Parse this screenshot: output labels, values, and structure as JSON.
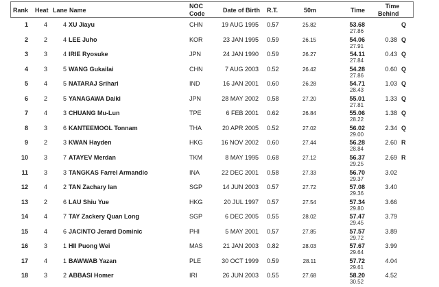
{
  "headers": {
    "rank": "Rank",
    "heat": "Heat",
    "lane": "Lane",
    "name": "Name",
    "noc": "NOC\nCode",
    "noc1": "NOC",
    "noc2": "Code",
    "dob": "Date of Birth",
    "rt": "R.T.",
    "m50": "50m",
    "time": "Time",
    "behind1": "Time",
    "behind2": "Behind"
  },
  "rows": [
    {
      "rank": "1",
      "heat": "4",
      "lane": "4",
      "name": "XU Jiayu",
      "noc": "CHN",
      "dob": "19 AUG 1995",
      "rt": "0.57",
      "m50": "25.82",
      "time": "53.68",
      "split": "27.86",
      "behind": "",
      "q": "Q"
    },
    {
      "rank": "2",
      "heat": "2",
      "lane": "4",
      "name": "LEE Juho",
      "noc": "KOR",
      "dob": "23 JAN 1995",
      "rt": "0.59",
      "m50": "26.15",
      "time": "54.06",
      "split": "27.91",
      "behind": "0.38",
      "q": "Q"
    },
    {
      "rank": "3",
      "heat": "3",
      "lane": "4",
      "name": "IRIE Ryosuke",
      "noc": "JPN",
      "dob": "24 JAN 1990",
      "rt": "0.59",
      "m50": "26.27",
      "time": "54.11",
      "split": "27.84",
      "behind": "0.43",
      "q": "Q"
    },
    {
      "rank": "4",
      "heat": "3",
      "lane": "5",
      "name": "WANG Gukailai",
      "noc": "CHN",
      "dob": "7 AUG 2003",
      "rt": "0.52",
      "m50": "26.42",
      "time": "54.28",
      "split": "27.86",
      "behind": "0.60",
      "q": "Q"
    },
    {
      "rank": "5",
      "heat": "4",
      "lane": "5",
      "name": "NATARAJ Srihari",
      "noc": "IND",
      "dob": "16 JAN 2001",
      "rt": "0.60",
      "m50": "26.28",
      "time": "54.71",
      "split": "28.43",
      "behind": "1.03",
      "q": "Q"
    },
    {
      "rank": "6",
      "heat": "2",
      "lane": "5",
      "name": "YANAGAWA Daiki",
      "noc": "JPN",
      "dob": "28 MAY 2002",
      "rt": "0.58",
      "m50": "27.20",
      "time": "55.01",
      "split": "27.81",
      "behind": "1.33",
      "q": "Q"
    },
    {
      "rank": "7",
      "heat": "4",
      "lane": "3",
      "name": "CHUANG Mu-Lun",
      "noc": "TPE",
      "dob": "6 FEB 2001",
      "rt": "0.62",
      "m50": "26.84",
      "time": "55.06",
      "split": "28.22",
      "behind": "1.38",
      "q": "Q"
    },
    {
      "rank": "8",
      "heat": "3",
      "lane": "6",
      "name": "KANTEEMOOL Tonnam",
      "noc": "THA",
      "dob": "20 APR 2005",
      "rt": "0.52",
      "m50": "27.02",
      "time": "56.02",
      "split": "29.00",
      "behind": "2.34",
      "q": "Q"
    },
    {
      "rank": "9",
      "heat": "2",
      "lane": "3",
      "name": "KWAN Hayden",
      "noc": "HKG",
      "dob": "16 NOV 2002",
      "rt": "0.60",
      "m50": "27.44",
      "time": "56.28",
      "split": "28.84",
      "behind": "2.60",
      "q": "R"
    },
    {
      "rank": "10",
      "heat": "3",
      "lane": "7",
      "name": "ATAYEV Merdan",
      "noc": "TKM",
      "dob": "8 MAY 1995",
      "rt": "0.68",
      "m50": "27.12",
      "time": "56.37",
      "split": "29.25",
      "behind": "2.69",
      "q": "R"
    },
    {
      "rank": "11",
      "heat": "3",
      "lane": "3",
      "name": "TANGKAS Farrel Armandio",
      "noc": "INA",
      "dob": "22 DEC 2001",
      "rt": "0.58",
      "m50": "27.33",
      "time": "56.70",
      "split": "29.37",
      "behind": "3.02",
      "q": ""
    },
    {
      "rank": "12",
      "heat": "4",
      "lane": "2",
      "name": "TAN Zachary Ian",
      "noc": "SGP",
      "dob": "14 JUN 2003",
      "rt": "0.57",
      "m50": "27.72",
      "time": "57.08",
      "split": "29.36",
      "behind": "3.40",
      "q": ""
    },
    {
      "rank": "13",
      "heat": "2",
      "lane": "6",
      "name": "LAU Shiu Yue",
      "noc": "HKG",
      "dob": "20 JUL 1997",
      "rt": "0.57",
      "m50": "27.54",
      "time": "57.34",
      "split": "29.80",
      "behind": "3.66",
      "q": ""
    },
    {
      "rank": "14",
      "heat": "4",
      "lane": "7",
      "name": "TAY Zackery Quan Long",
      "noc": "SGP",
      "dob": "6 DEC 2005",
      "rt": "0.55",
      "m50": "28.02",
      "time": "57.47",
      "split": "29.45",
      "behind": "3.79",
      "q": ""
    },
    {
      "rank": "15",
      "heat": "4",
      "lane": "6",
      "name": "JACINTO Jerard Dominic",
      "noc": "PHI",
      "dob": "5 MAY 2001",
      "rt": "0.57",
      "m50": "27.85",
      "time": "57.57",
      "split": "29.72",
      "behind": "3.89",
      "q": ""
    },
    {
      "rank": "16",
      "heat": "3",
      "lane": "1",
      "name": "HII Puong Wei",
      "noc": "MAS",
      "dob": "21 JAN 2003",
      "rt": "0.82",
      "m50": "28.03",
      "time": "57.67",
      "split": "29.64",
      "behind": "3.99",
      "q": ""
    },
    {
      "rank": "17",
      "heat": "4",
      "lane": "1",
      "name": "BAWWAB Yazan",
      "noc": "PLE",
      "dob": "30 OCT 1999",
      "rt": "0.59",
      "m50": "28.11",
      "time": "57.72",
      "split": "29.61",
      "behind": "4.04",
      "q": ""
    },
    {
      "rank": "18",
      "heat": "3",
      "lane": "2",
      "name": "ABBASI Homer",
      "noc": "IRI",
      "dob": "26 JUN 2003",
      "rt": "0.55",
      "m50": "27.68",
      "time": "58.20",
      "split": "30.52",
      "behind": "4.52",
      "q": ""
    }
  ]
}
